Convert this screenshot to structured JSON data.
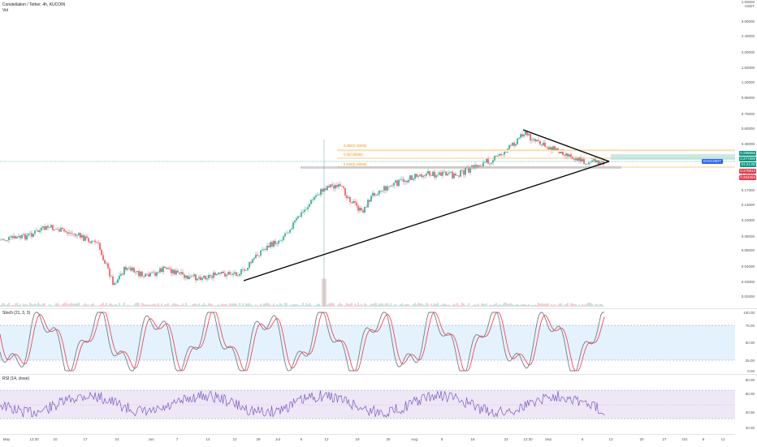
{
  "header": {
    "symbol_title": "Constellation / Tether, 4h, KUCOIN",
    "volume_label": "Vol"
  },
  "price_axis": {
    "currency": "USDT",
    "unit_top": "1.00000",
    "labels": [
      "3.00000",
      "2.40000",
      "2.00000",
      "1.50000",
      "1.20000",
      "0.95000",
      "0.75000",
      "0.60000",
      "0.45000",
      "0.35000",
      "0.25000",
      "0.17000",
      "0.13000",
      "0.10000",
      "0.08000",
      "0.06000",
      "0.04000",
      "0.03000",
      "0.02000"
    ],
    "tags": [
      {
        "text": "0.295566",
        "color": "#089981"
      },
      {
        "text": "0.277200",
        "color": "#089981"
      },
      {
        "text": "01:21:00",
        "color": "#089981"
      },
      {
        "text": "0.270814",
        "color": "#f23645"
      },
      {
        "text": "0.263453",
        "color": "#f23645"
      }
    ],
    "pair_badge": "DAGUSDT"
  },
  "fib": {
    "labels": [
      "0.382(0.32939)",
      "0.5(0.29566)",
      "0.618(0.26959)"
    ]
  },
  "stoch": {
    "legend": "Stoch (21, 3, 3)",
    "labels": [
      "100.00",
      "75.00",
      "50.00",
      "25.00",
      "0.00"
    ]
  },
  "rsi": {
    "legend": "RSI (14, close)",
    "labels": [
      "80.00",
      "60.00",
      "40.00",
      "20.00"
    ]
  },
  "time_axis": {
    "labels": [
      "May",
      "12:30",
      "10",
      "17",
      "24",
      "Jun",
      "7",
      "14",
      "21",
      "28",
      "Jul",
      "6",
      "12",
      "19",
      "26",
      "Aug",
      "9",
      "16",
      "23",
      "12:30",
      "Sep",
      "6",
      "13",
      "20",
      "27",
      "Oct",
      "6",
      "11"
    ]
  },
  "colors": {
    "up": "#089981",
    "down": "#f23645",
    "fib": "#f7931a",
    "stoch_band": "#e3f2fd",
    "rsi_band": "#ede7f6"
  }
}
